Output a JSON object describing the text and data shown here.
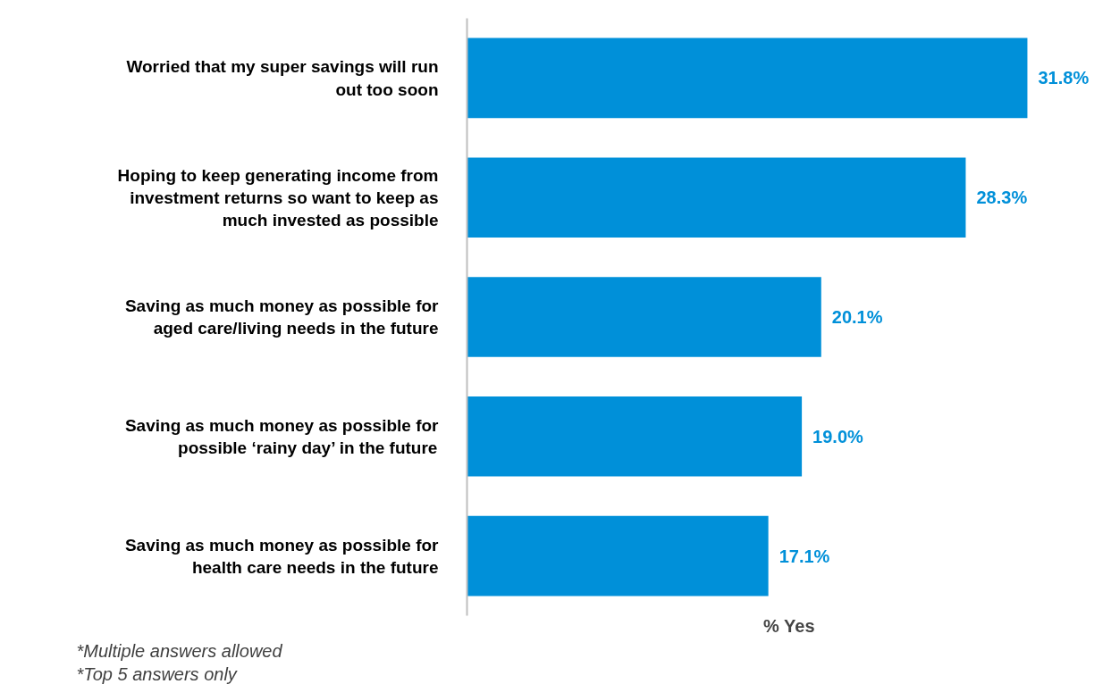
{
  "chart_data": {
    "type": "bar",
    "orientation": "horizontal",
    "categories": [
      "Worried that my super savings will run out too soon",
      "Hoping to keep generating income from investment returns so want to keep as much invested as possible",
      "Saving as much money as possible for aged care/living needs in the future",
      "Saving as much money as possible for possible ‘rainy day’ in the future",
      "Saving as much money as possible for health care needs in the future"
    ],
    "values": [
      31.8,
      28.3,
      20.1,
      19.0,
      17.1
    ],
    "value_labels": [
      "31.8%",
      "28.3%",
      "20.1%",
      "19.0%",
      "17.1%"
    ],
    "color": "#0090d9",
    "xlabel": "% Yes",
    "tick_labels": "y",
    "grid": false,
    "annotations": [
      "*Multiple answers allowed",
      "*Top 5 answers only"
    ]
  }
}
